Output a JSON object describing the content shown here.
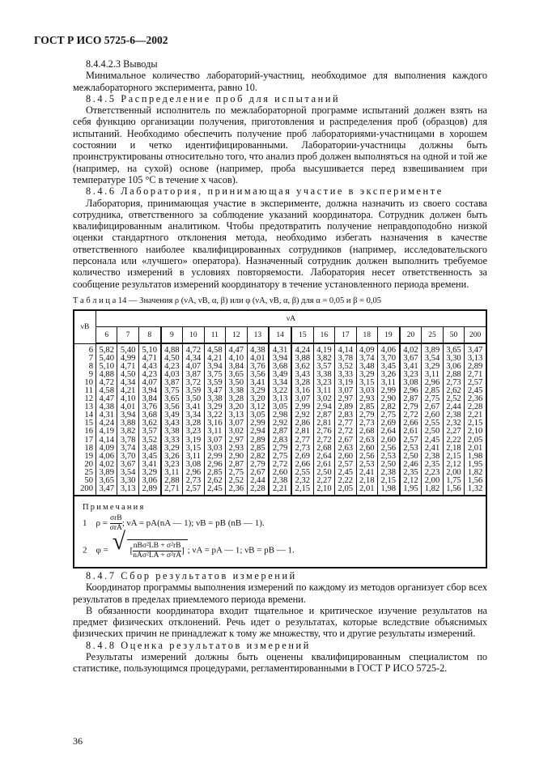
{
  "header": "ГОСТ Р ИСО 5725-6—2002",
  "top_paragraphs": [
    {
      "text": "8.4.4.2.3 Выводы",
      "cls": "ind"
    },
    {
      "text": "Минимальное количество лабораторий-участниц, необходимое для выполнения каждого межлабораторного эксперимента, равно 10.",
      "cls": "ind"
    },
    {
      "text": "8.4.5 Распределение проб для испытаний",
      "cls": "ind sp"
    },
    {
      "text": "Ответственный исполнитель по межлабораторной программе испытаний должен взять на себя функцию организации получения, приготовления и распределения проб (образцов) для испытаний. Необходимо обеспечить получение проб лабораториями-участницами в хорошем состоянии и четко идентифицированными. Лаборатории-участницы должны быть проинструктированы относительно того, что анализ проб должен выполняться на одной и той же (например, на сухой) основе (например, проба высушивается перед взвешиванием при температуре 105 °С в течение x часов).",
      "cls": "ind"
    },
    {
      "text": "8.4.6 Лаборатория, принимающая участие в эксперименте",
      "cls": "ind sp"
    },
    {
      "text": "Лаборатория, принимающая участие в эксперименте, должна назначить из своего состава сотрудника, ответственного за соблюдение указаний координатора. Сотрудник должен быть квалифицированным аналитиком. Чтобы предотвратить получение неправдоподобно низкой оценки стандартного отклонения метода, необходимо избегать назначения в качестве ответственного наиболее квалифицированных сотрудников (например, исследовательского персонала или «лучшего» оператора). Назначенный сотрудник должен выполнить требуемое количество измерений в условиях повторяемости. Лаборатория несет ответственность за сообщение результатов измерений координатору в течение установленного периода времени.",
      "cls": "ind"
    }
  ],
  "table": {
    "caption": "Т а б л и ц а  14 — Значения ρ (νA, νB, α, β) или φ (νA, νB, α, β) для α = 0,05 и β = 0,05",
    "row_header": "νB",
    "col_group_header": "νA",
    "columns": [
      "6",
      "7",
      "8",
      "9",
      "10",
      "11",
      "12",
      "13",
      "14",
      "15",
      "16",
      "17",
      "18",
      "19",
      "20",
      "25",
      "50",
      "200"
    ],
    "rows": [
      {
        "nu_b": "6",
        "values": [
          "5,82",
          "5,40",
          "5,10",
          "4,88",
          "4,72",
          "4,58",
          "4,47",
          "4,38",
          "4,31",
          "4,24",
          "4,19",
          "4,14",
          "4,09",
          "4,06",
          "4,02",
          "3,89",
          "3,65",
          "3,47"
        ]
      },
      {
        "nu_b": "7",
        "values": [
          "5,40",
          "4,99",
          "4,71",
          "4,50",
          "4,34",
          "4,21",
          "4,10",
          "4,01",
          "3,94",
          "3,88",
          "3,82",
          "3,78",
          "3,74",
          "3,70",
          "3,67",
          "3,54",
          "3,30",
          "3,13"
        ]
      },
      {
        "nu_b": "8",
        "values": [
          "5,10",
          "4,71",
          "4,43",
          "4,23",
          "4,07",
          "3,94",
          "3,84",
          "3,76",
          "3,68",
          "3,62",
          "3,57",
          "3,52",
          "3,48",
          "3,45",
          "3,41",
          "3,29",
          "3,06",
          "2,89"
        ]
      },
      {
        "nu_b": "9",
        "values": [
          "4,88",
          "4,50",
          "4,23",
          "4,03",
          "3,87",
          "3,75",
          "3,65",
          "3,56",
          "3,49",
          "3,43",
          "3,38",
          "3,33",
          "3,29",
          "3,26",
          "3,23",
          "3,11",
          "2,88",
          "2,71"
        ]
      },
      {
        "nu_b": "10",
        "values": [
          "4,72",
          "4,34",
          "4,07",
          "3,87",
          "3,72",
          "3,59",
          "3,50",
          "3,41",
          "3,34",
          "3,28",
          "3,23",
          "3,19",
          "3,15",
          "3,11",
          "3,08",
          "2,96",
          "2,73",
          "2,57"
        ]
      },
      {
        "nu_b": "11",
        "values": [
          "4,58",
          "4,21",
          "3,94",
          "3,75",
          "3,59",
          "3,47",
          "3,38",
          "3,29",
          "3,22",
          "3,16",
          "3,11",
          "3,07",
          "3,03",
          "2,99",
          "2,96",
          "2,85",
          "2,62",
          "2,45"
        ]
      },
      {
        "nu_b": "12",
        "values": [
          "4,47",
          "4,10",
          "3,84",
          "3,65",
          "3,50",
          "3,38",
          "3,28",
          "3,20",
          "3,13",
          "3,07",
          "3,02",
          "2,97",
          "2,93",
          "2,90",
          "2,87",
          "2,75",
          "2,52",
          "2,36"
        ]
      },
      {
        "nu_b": "13",
        "values": [
          "4,38",
          "4,01",
          "3,76",
          "3,56",
          "3,41",
          "3,29",
          "3,20",
          "3,12",
          "3,05",
          "2,99",
          "2,94",
          "2,89",
          "2,85",
          "2,82",
          "2,79",
          "2,67",
          "2,44",
          "2,28"
        ]
      },
      {
        "nu_b": "14",
        "values": [
          "4,31",
          "3,94",
          "3,68",
          "3,49",
          "3,34",
          "3,22",
          "3,13",
          "3,05",
          "2,98",
          "2,92",
          "2,87",
          "2,83",
          "2,79",
          "2,75",
          "2,72",
          "2,60",
          "2,38",
          "2,21"
        ]
      },
      {
        "nu_b": "15",
        "values": [
          "4,24",
          "3,88",
          "3,62",
          "3,43",
          "3,28",
          "3,16",
          "3,07",
          "2,99",
          "2,92",
          "2,86",
          "2,81",
          "2,77",
          "2,73",
          "2,69",
          "2,66",
          "2,55",
          "2,32",
          "2,15"
        ]
      },
      {
        "nu_b": "16",
        "values": [
          "4,19",
          "3,82",
          "3,57",
          "3,38",
          "3,23",
          "3,11",
          "3,02",
          "2,94",
          "2,87",
          "2,81",
          "2,76",
          "2,72",
          "2,68",
          "2,64",
          "2,61",
          "2,50",
          "2,27",
          "2,10"
        ]
      },
      {
        "nu_b": "17",
        "values": [
          "4,14",
          "3,78",
          "3,52",
          "3,33",
          "3,19",
          "3,07",
          "2,97",
          "2,89",
          "2,83",
          "2,77",
          "2,72",
          "2,67",
          "2,63",
          "2,60",
          "2,57",
          "2,45",
          "2,22",
          "2,05"
        ]
      },
      {
        "nu_b": "18",
        "values": [
          "4,09",
          "3,74",
          "3,48",
          "3,29",
          "3,15",
          "3,03",
          "2,93",
          "2,85",
          "2,79",
          "2,73",
          "2,68",
          "2,63",
          "2,60",
          "2,56",
          "2,53",
          "2,41",
          "2,18",
          "2,01"
        ]
      },
      {
        "nu_b": "19",
        "values": [
          "4,06",
          "3,70",
          "3,45",
          "3,26",
          "3,11",
          "2,99",
          "2,90",
          "2,82",
          "2,75",
          "2,69",
          "2,64",
          "2,60",
          "2,56",
          "2,53",
          "2,50",
          "2,38",
          "2,15",
          "1,98"
        ]
      },
      {
        "nu_b": "20",
        "values": [
          "4,02",
          "3,67",
          "3,41",
          "3,23",
          "3,08",
          "2,96",
          "2,87",
          "2,79",
          "2,72",
          "2,66",
          "2,61",
          "2,57",
          "2,53",
          "2,50",
          "2,46",
          "2,35",
          "2,12",
          "1,95"
        ]
      },
      {
        "nu_b": "25",
        "values": [
          "3,89",
          "3,54",
          "3,29",
          "3,11",
          "2,96",
          "2,85",
          "2,75",
          "2,67",
          "2,60",
          "2,55",
          "2,50",
          "2,45",
          "2,41",
          "2,38",
          "2,35",
          "2,23",
          "2,00",
          "1,82"
        ]
      },
      {
        "nu_b": "50",
        "values": [
          "3,65",
          "3,30",
          "3,06",
          "2,88",
          "2,73",
          "2,62",
          "2,52",
          "2,44",
          "2,38",
          "2,32",
          "2,27",
          "2,22",
          "2,18",
          "2,15",
          "2,12",
          "2,00",
          "1,75",
          "1,56"
        ]
      },
      {
        "nu_b": "200",
        "values": [
          "3,47",
          "3,13",
          "2,89",
          "2,71",
          "2,57",
          "2,45",
          "2,36",
          "2,28",
          "2,21",
          "2,15",
          "2,10",
          "2,05",
          "2,01",
          "1,98",
          "1,95",
          "1,82",
          "1,56",
          "1,32"
        ]
      }
    ],
    "notes": {
      "title": "Примечания",
      "n1_num": "1",
      "n1_lhs": "ρ =",
      "n1_num_expr": "σrB",
      "n1_den_expr": "σrA",
      "n1_rest": ";   νA = pA(nA — 1);   νB = pB (nB — 1).",
      "n2_num": "2",
      "n2_lhs": "φ =",
      "n2_num_expr": "nBσ²LB + σ²rB",
      "n2_den_expr": "nAσ²LA + σ²rA",
      "n2_rest": ";   νA = pA — 1;    νB = pB — 1."
    }
  },
  "bottom_paragraphs": [
    {
      "text": "8.4.7 Сбор результатов измерений",
      "cls": "ind sp"
    },
    {
      "text": "Координатор программы выполнения измерений по каждому из методов организует сбор всех результатов в пределах приемлемого периода времени.",
      "cls": "ind"
    },
    {
      "text": "В обязанности координатора входит тщательное и критическое изучение результатов на предмет физических отклонений. Речь идет о результатах, которые вследствие объяснимых физических причин не принадлежат к тому же множеству, что и другие результаты измерений.",
      "cls": "ind"
    },
    {
      "text": "8.4.8 Оценка результатов измерений",
      "cls": "ind sp"
    },
    {
      "text": "Результаты измерений должны быть оценены квалифицированным специалистом по статистике, пользующимся процедурами, регламентированными в ГОСТ Р ИСО 5725-2.",
      "cls": "ind"
    }
  ],
  "page_number": "36"
}
